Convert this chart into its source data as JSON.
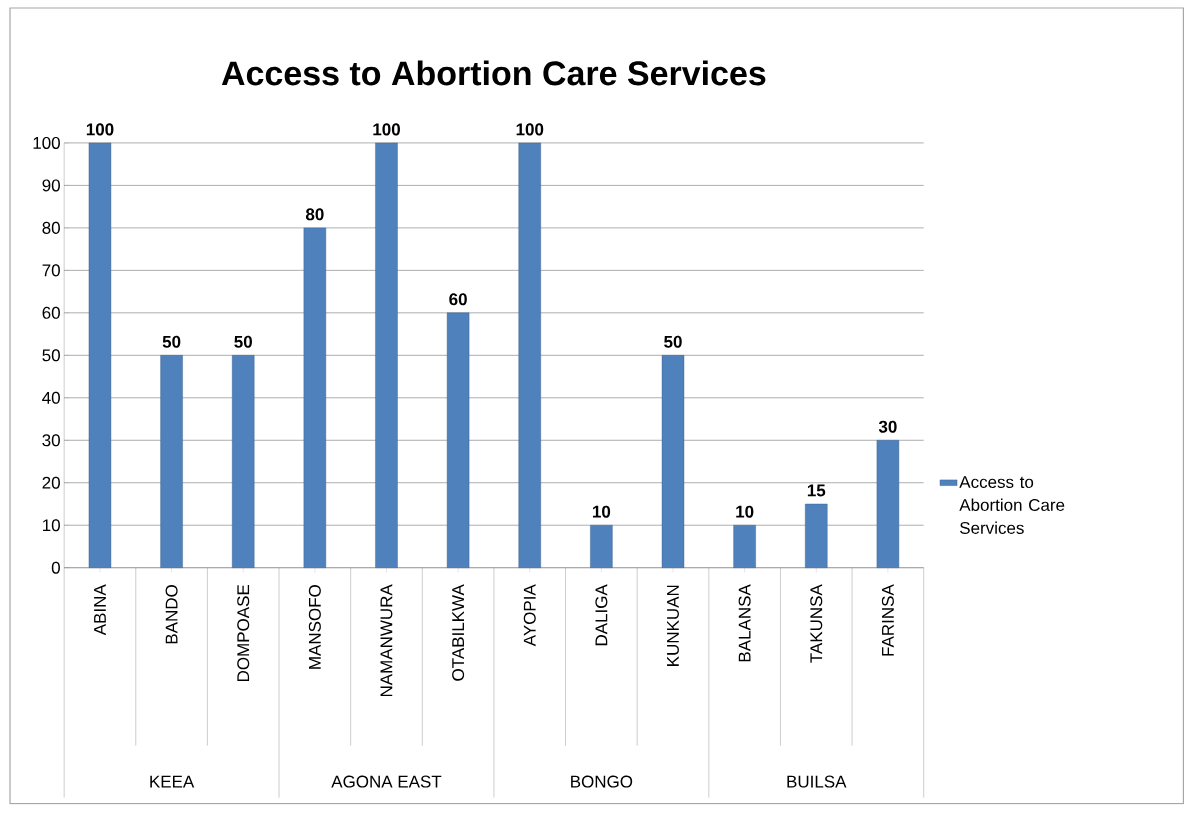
{
  "chart_data": {
    "type": "bar",
    "title": "Access to Abortion Care Services",
    "categories": [
      "ABINA",
      "BANDO",
      "DOMPOASE",
      "MANSOFO",
      "NAMANWURA",
      "OTABILKWA",
      "AYOPIA",
      "DALIGA",
      "KUNKUAN",
      "BALANSA",
      "TAKUNSA",
      "FARINSA"
    ],
    "series": [
      {
        "name": "Access to Abortion Care Services",
        "color": "#4f81bd",
        "values": [
          100,
          50,
          50,
          80,
          100,
          60,
          100,
          10,
          50,
          10,
          15,
          30
        ]
      }
    ],
    "annotations": [
      "KEEA",
      "AGONA EAST",
      "BONGO",
      "BUILSA"
    ],
    "ylim": [
      0,
      100
    ],
    "yticks": [
      0,
      10,
      20,
      30,
      40,
      50,
      60,
      70,
      80,
      90,
      100
    ],
    "grid": "y",
    "legend": "right",
    "data_labels": true
  }
}
